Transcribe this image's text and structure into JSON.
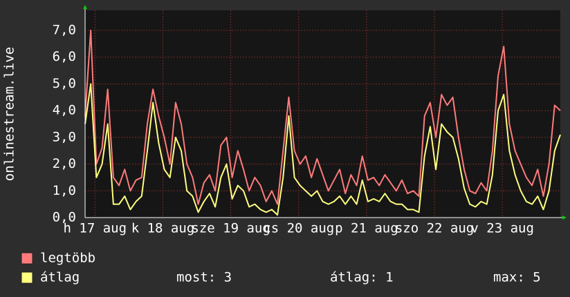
{
  "chart_data": {
    "type": "line",
    "y_label": "onlinestream.live",
    "x": [
      0,
      2,
      4,
      6,
      8,
      10,
      12,
      14,
      16,
      18,
      20,
      22,
      24,
      26,
      28,
      30,
      32,
      34,
      36,
      38,
      40,
      42,
      44,
      46,
      48,
      50,
      52,
      54,
      56,
      58,
      60,
      62,
      64,
      66,
      68,
      70,
      72,
      74,
      76,
      78,
      80,
      82,
      84,
      86,
      88,
      90,
      92,
      94,
      96,
      98,
      100,
      102,
      104,
      106,
      108,
      110,
      112,
      114,
      116,
      118,
      120,
      122,
      124,
      126,
      128,
      130,
      132,
      134,
      136,
      138,
      140,
      142,
      144,
      146,
      148,
      150,
      152,
      154,
      156,
      158,
      160,
      162,
      164,
      166,
      168
    ],
    "xlim": [
      0,
      168
    ],
    "xticks": [
      {
        "value": 3.5,
        "label": "h 17 aug"
      },
      {
        "value": 27.5,
        "label": "k 18 aug"
      },
      {
        "value": 51.5,
        "label": "sze 19 aug"
      },
      {
        "value": 75.5,
        "label": "cs 20 aug"
      },
      {
        "value": 99.5,
        "label": "p 21 aug"
      },
      {
        "value": 123.5,
        "label": "szo 22 aug"
      },
      {
        "value": 147.5,
        "label": "v 23 aug"
      }
    ],
    "ylim": [
      0,
      7.75
    ],
    "yticks": [
      {
        "value": 0,
        "label": "0,0"
      },
      {
        "value": 1,
        "label": "1,0"
      },
      {
        "value": 2,
        "label": "2,0"
      },
      {
        "value": 3,
        "label": "3,0"
      },
      {
        "value": 4,
        "label": "4,0"
      },
      {
        "value": 5,
        "label": "5,0"
      },
      {
        "value": 6,
        "label": "6,0"
      },
      {
        "value": 7,
        "label": "7,0"
      }
    ],
    "grid": true,
    "series": [
      {
        "name": "legtöbb",
        "color": "#ff7b7b",
        "values": [
          3.8,
          7.0,
          2.0,
          2.6,
          4.8,
          1.5,
          1.2,
          1.8,
          1.0,
          1.4,
          1.5,
          3.5,
          4.8,
          3.8,
          3.0,
          2.0,
          4.3,
          3.5,
          2.0,
          1.5,
          0.5,
          1.3,
          1.6,
          1.0,
          2.7,
          3.0,
          1.5,
          2.5,
          1.8,
          1.0,
          1.5,
          1.2,
          0.6,
          1.0,
          0.5,
          2.5,
          4.5,
          2.5,
          2.0,
          2.3,
          1.5,
          2.2,
          1.6,
          1.0,
          1.4,
          1.8,
          0.9,
          1.6,
          1.2,
          2.3,
          1.4,
          1.5,
          1.2,
          1.6,
          1.3,
          1.0,
          1.4,
          0.9,
          1.0,
          0.8,
          3.8,
          4.3,
          3.0,
          4.6,
          4.2,
          4.5,
          3.0,
          1.8,
          1.0,
          0.9,
          1.3,
          1.0,
          2.5,
          5.3,
          6.4,
          3.5,
          2.5,
          2.0,
          1.5,
          1.2,
          1.8,
          0.8,
          2.0,
          4.2,
          4.0
        ]
      },
      {
        "name": "átlag",
        "color": "#ffff80",
        "values": [
          3.5,
          5.0,
          1.5,
          2.0,
          3.5,
          0.5,
          0.5,
          0.8,
          0.3,
          0.6,
          0.8,
          2.5,
          4.3,
          2.8,
          1.8,
          1.5,
          3.0,
          2.5,
          1.0,
          0.8,
          0.2,
          0.6,
          0.9,
          0.4,
          1.5,
          2.0,
          0.7,
          1.2,
          1.0,
          0.4,
          0.5,
          0.3,
          0.2,
          0.3,
          0.1,
          1.5,
          3.8,
          1.5,
          1.2,
          1.0,
          0.8,
          1.0,
          0.6,
          0.5,
          0.6,
          0.8,
          0.5,
          0.8,
          0.5,
          1.4,
          0.6,
          0.7,
          0.6,
          0.9,
          0.6,
          0.5,
          0.5,
          0.3,
          0.3,
          0.2,
          2.3,
          3.4,
          1.8,
          3.5,
          3.2,
          3.0,
          2.2,
          1.1,
          0.5,
          0.4,
          0.6,
          0.5,
          1.6,
          4.0,
          4.6,
          2.5,
          1.6,
          1.0,
          0.6,
          0.5,
          0.8,
          0.3,
          1.0,
          2.5,
          3.1
        ]
      }
    ],
    "stats": [
      "most: 3",
      "átlag: 1",
      "max: 5"
    ]
  }
}
